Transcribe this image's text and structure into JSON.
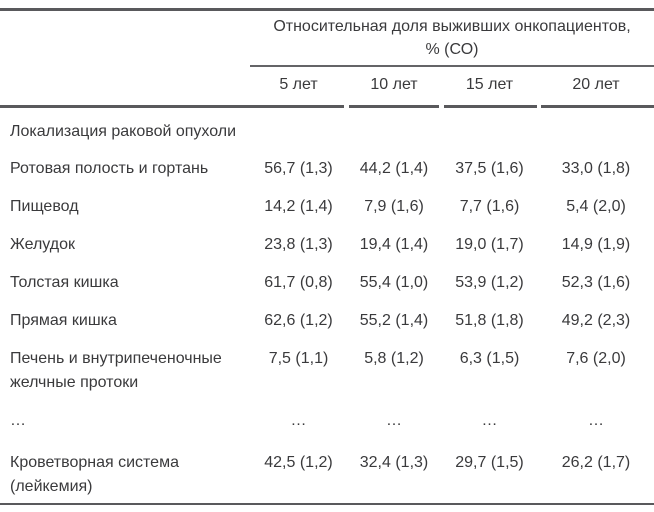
{
  "table": {
    "header_group_line1": "Относительная доля выживших онкопациентов,",
    "header_group_line2": "% (СО)",
    "columns": [
      "5 лет",
      "10 лет",
      "15 лет",
      "20 лет"
    ],
    "section_header": "Локализация раковой опухоли",
    "rows": [
      {
        "label": "Ротовая полость и гортань",
        "values": [
          "56,7 (1,3)",
          "44,2 (1,4)",
          "37,5 (1,6)",
          "33,0 (1,8)"
        ]
      },
      {
        "label": "Пищевод",
        "values": [
          "14,2 (1,4)",
          "7,9 (1,6)",
          "7,7 (1,6)",
          "5,4 (2,0)"
        ]
      },
      {
        "label": "Желудок",
        "values": [
          "23,8 (1,3)",
          "19,4 (1,4)",
          "19,0 (1,7)",
          "14,9 (1,9)"
        ]
      },
      {
        "label": "Толстая кишка",
        "values": [
          "61,7 (0,8)",
          "55,4 (1,0)",
          "53,9 (1,2)",
          "52,3 (1,6)"
        ]
      },
      {
        "label": "Прямая кишка",
        "values": [
          "62,6 (1,2)",
          "55,2 (1,4)",
          "51,8 (1,8)",
          "49,2 (2,3)"
        ]
      },
      {
        "label": "Печень и внутрипеченочные желчные протоки",
        "values": [
          "7,5 (1,1)",
          "5,8 (1,2)",
          "6,3 (1,5)",
          "7,6 (2,0)"
        ]
      },
      {
        "label": "…",
        "values": [
          "…",
          "…",
          "…",
          "…"
        ]
      },
      {
        "label": "Кроветворная система (лейкемия)",
        "values": [
          "42,5 (1,2)",
          "32,4 (1,3)",
          "29,7 (1,5)",
          "26,2 (1,7)"
        ]
      }
    ]
  }
}
